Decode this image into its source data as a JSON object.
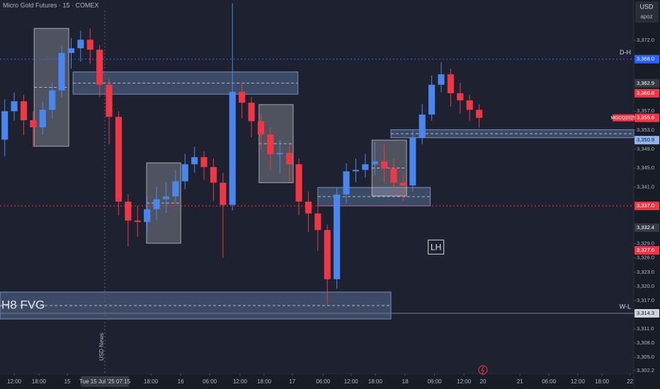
{
  "chart_data": {
    "type": "candlestick",
    "title": "Micro Gold Futures · 15 · COMEX",
    "currency": "USD",
    "axis_note": "apoz",
    "event_label": "USD News",
    "event_x": 21.5,
    "crosshair_label": "Tue 15 Jul '25 07:15",
    "crosshair_x": 22.1,
    "up_color": "#4a86f0",
    "down_color": "#f23645",
    "xlim": [
      0,
      133.6
    ],
    "ylim": [
      3301.6,
      3380.5
    ],
    "x": [
      1,
      3,
      5,
      7,
      9,
      11,
      13,
      15,
      17,
      19,
      21,
      23,
      25,
      27,
      29,
      31,
      33,
      35,
      37,
      39,
      41,
      43,
      45,
      47,
      49,
      51,
      53,
      55,
      57,
      59,
      61,
      63,
      65,
      67,
      69,
      71,
      73,
      75,
      77,
      79,
      81,
      83,
      85,
      87,
      89,
      91,
      93,
      95,
      97,
      99,
      101
    ],
    "open": [
      3351.0,
      3357.0,
      3359.1,
      3355.1,
      3353.6,
      3357.3,
      3361.4,
      3369.3,
      3370.3,
      3372.1,
      3370.0,
      3362.6,
      3355.8,
      3337.9,
      3333.9,
      3333.6,
      3336.3,
      3338.4,
      3339.0,
      3342.2,
      3345.8,
      3347.3,
      3345.2,
      3341.9,
      3337.2,
      3361.1,
      3358.8,
      3354.9,
      3352.1,
      3347.9,
      3348.2,
      3345.8,
      3337.9,
      3335.4,
      3331.9,
      3321.5,
      3339.4,
      3344.3,
      3344.6,
      3345.8,
      3346.4,
      3344.9,
      3341.9,
      3341.3,
      3351.4,
      3356.3,
      3362.6,
      3364.8,
      3360.8,
      3359.3,
      3357.3
    ],
    "high": [
      3359.5,
      3361.0,
      3360.5,
      3357.0,
      3359.0,
      3363.0,
      3371.0,
      3372.5,
      3374.0,
      3374.5,
      3371.0,
      3364.0,
      3357.0,
      3339.5,
      3337.0,
      3339.0,
      3341.0,
      3342.0,
      3344.5,
      3348.0,
      3349.5,
      3348.5,
      3347.0,
      3344.0,
      3379.8,
      3363.0,
      3360.0,
      3356.5,
      3353.5,
      3351.0,
      3350.0,
      3347.0,
      3340.0,
      3337.5,
      3333.0,
      3341.0,
      3346.0,
      3347.0,
      3348.0,
      3350.5,
      3350.0,
      3347.0,
      3344.0,
      3353.0,
      3358.5,
      3364.5,
      3367.3,
      3366.0,
      3363.0,
      3360.5,
      3358.5
    ],
    "low": [
      3347.5,
      3355.0,
      3352.0,
      3349.5,
      3352.0,
      3355.5,
      3360.0,
      3366.0,
      3367.5,
      3367.0,
      3360.0,
      3350.0,
      3335.0,
      3328.5,
      3330.5,
      3331.5,
      3334.0,
      3335.5,
      3337.5,
      3340.5,
      3344.0,
      3342.5,
      3338.0,
      3326.0,
      3336.0,
      3355.5,
      3351.5,
      3349.0,
      3344.5,
      3344.0,
      3342.0,
      3335.0,
      3331.5,
      3327.5,
      3316.2,
      3319.5,
      3337.5,
      3342.0,
      3343.0,
      3343.5,
      3342.0,
      3339.0,
      3338.0,
      3340.0,
      3350.0,
      3355.0,
      3361.0,
      3358.0,
      3356.5,
      3355.0,
      3353.5
    ],
    "close": [
      3357.0,
      3359.1,
      3355.1,
      3353.6,
      3357.3,
      3361.4,
      3369.3,
      3370.3,
      3372.1,
      3370.0,
      3362.6,
      3355.8,
      3337.9,
      3333.9,
      3333.6,
      3336.3,
      3338.4,
      3339.0,
      3342.2,
      3345.8,
      3347.3,
      3345.2,
      3341.9,
      3337.2,
      3361.1,
      3358.8,
      3354.9,
      3352.1,
      3347.9,
      3348.2,
      3345.8,
      3337.9,
      3335.4,
      3331.9,
      3321.5,
      3339.4,
      3344.3,
      3344.6,
      3345.8,
      3346.4,
      3344.9,
      3341.9,
      3341.3,
      3351.4,
      3356.3,
      3362.6,
      3364.8,
      3360.8,
      3359.3,
      3357.3,
      3355.6
    ],
    "zones": [
      {
        "x": [
          7.2,
          14.5
        ],
        "y": [
          3349.6,
          3374.5
        ],
        "color": "#d1d4dc"
      },
      {
        "x": [
          15.4,
          62.8
        ],
        "y": [
          3360.6,
          3365.3
        ],
        "color": "#90b4f0"
      },
      {
        "x": [
          30.9,
          38.1
        ],
        "y": [
          3329.1,
          3346.1
        ],
        "color": "#d1d4dc"
      },
      {
        "x": [
          54.6,
          61.8
        ],
        "y": [
          3341.9,
          3358.4
        ],
        "color": "#d1d4dc"
      },
      {
        "x": [
          67.0,
          90.7
        ],
        "y": [
          3337.0,
          3340.9
        ],
        "color": "#90b4f0"
      },
      {
        "x": [
          78.4,
          85.7
        ],
        "y": [
          3339.1,
          3350.9
        ],
        "color": "#d1d4dc"
      },
      {
        "x": [
          82.4,
          133.6
        ],
        "y": [
          3351.4,
          3353.1
        ],
        "color": "#90b4f0"
      },
      {
        "x": [
          0,
          82.4
        ],
        "y": [
          3313.1,
          3318.8
        ],
        "color": "#90b4f0",
        "label": "H8 FVG"
      }
    ],
    "levels": [
      {
        "value": 3368.0,
        "label": "D-H",
        "color": "#2962ff",
        "dash": true
      },
      {
        "value": 3337.0,
        "color": "#f23645",
        "dash": true
      },
      {
        "value": 3314.3,
        "label": "W-L",
        "color": "#787b86",
        "dash": false
      }
    ],
    "annotation": {
      "text": "LH",
      "x": 91.9,
      "y": 3328.3
    },
    "price_labels": [
      {
        "value": 3368.0,
        "label": "3,368.0",
        "color": "#2962ff"
      },
      {
        "value": 3362.9,
        "label": "3,362.9",
        "color": "#363a45"
      },
      {
        "value": 3360.8,
        "label": "3,360.8",
        "color": "#f23645"
      },
      {
        "value": 3355.6,
        "label": "3,355.6",
        "color": "#f23645",
        "tag": "MGCQ2025"
      },
      {
        "value": 3350.9,
        "label": "3,350.9",
        "color": "#90b4f0"
      },
      {
        "value": 3337.0,
        "label": "3,337.0",
        "color": "#f23645"
      },
      {
        "value": 3332.4,
        "label": "3,332.4",
        "color": "#363a45"
      },
      {
        "value": 3327.6,
        "label": "3,327.6",
        "color": "#f23645"
      },
      {
        "value": 3314.3,
        "label": "3,314.3",
        "color": "#d1d4dc"
      }
    ],
    "yticks": [
      {
        "value": 3372.0,
        "label": "3,372.0"
      },
      {
        "value": 3357.0,
        "label": "3,357.0"
      },
      {
        "value": 3353.0,
        "label": "3,353.0"
      },
      {
        "value": 3349.0,
        "label": "3,349.0"
      },
      {
        "value": 3345.0,
        "label": "3,345.0"
      },
      {
        "value": 3341.0,
        "label": "3,341.0"
      },
      {
        "value": 3329.0,
        "label": "3,329.0"
      },
      {
        "value": 3326.0,
        "label": "3,326.0"
      },
      {
        "value": 3323.0,
        "label": "3,323.0"
      },
      {
        "value": 3320.0,
        "label": "3,320.0"
      },
      {
        "value": 3317.0,
        "label": "3,317.0"
      },
      {
        "value": 3311.0,
        "label": "3,311.0"
      },
      {
        "value": 3308.0,
        "label": "3,308.0"
      },
      {
        "value": 3305.0,
        "label": "3,305.0"
      },
      {
        "value": 3302.2,
        "label": "3,302.2"
      }
    ],
    "xticks": [
      {
        "value": 3.0,
        "label": "12:00"
      },
      {
        "value": 8.2,
        "label": "18:00"
      },
      {
        "value": 14.2,
        "label": "15"
      },
      {
        "value": 31.8,
        "label": "18:00"
      },
      {
        "value": 38.1,
        "label": "16"
      },
      {
        "value": 44.2,
        "label": "06:00"
      },
      {
        "value": 50.6,
        "label": "12:00"
      },
      {
        "value": 55.7,
        "label": "18:00"
      },
      {
        "value": 61.6,
        "label": "17"
      },
      {
        "value": 68.1,
        "label": "06:00"
      },
      {
        "value": 74.0,
        "label": "12:00"
      },
      {
        "value": 79.1,
        "label": "18:00"
      },
      {
        "value": 85.4,
        "label": "18"
      },
      {
        "value": 91.6,
        "label": "06:00"
      },
      {
        "value": 97.8,
        "label": "12:00"
      },
      {
        "value": 101.8,
        "label": "20"
      },
      {
        "value": 109.6,
        "label": "21"
      },
      {
        "value": 115.7,
        "label": "06:00"
      },
      {
        "value": 121.8,
        "label": "12:00"
      },
      {
        "value": 126.9,
        "label": "18:00"
      },
      {
        "value": 132.8,
        "label": "22"
      }
    ]
  }
}
